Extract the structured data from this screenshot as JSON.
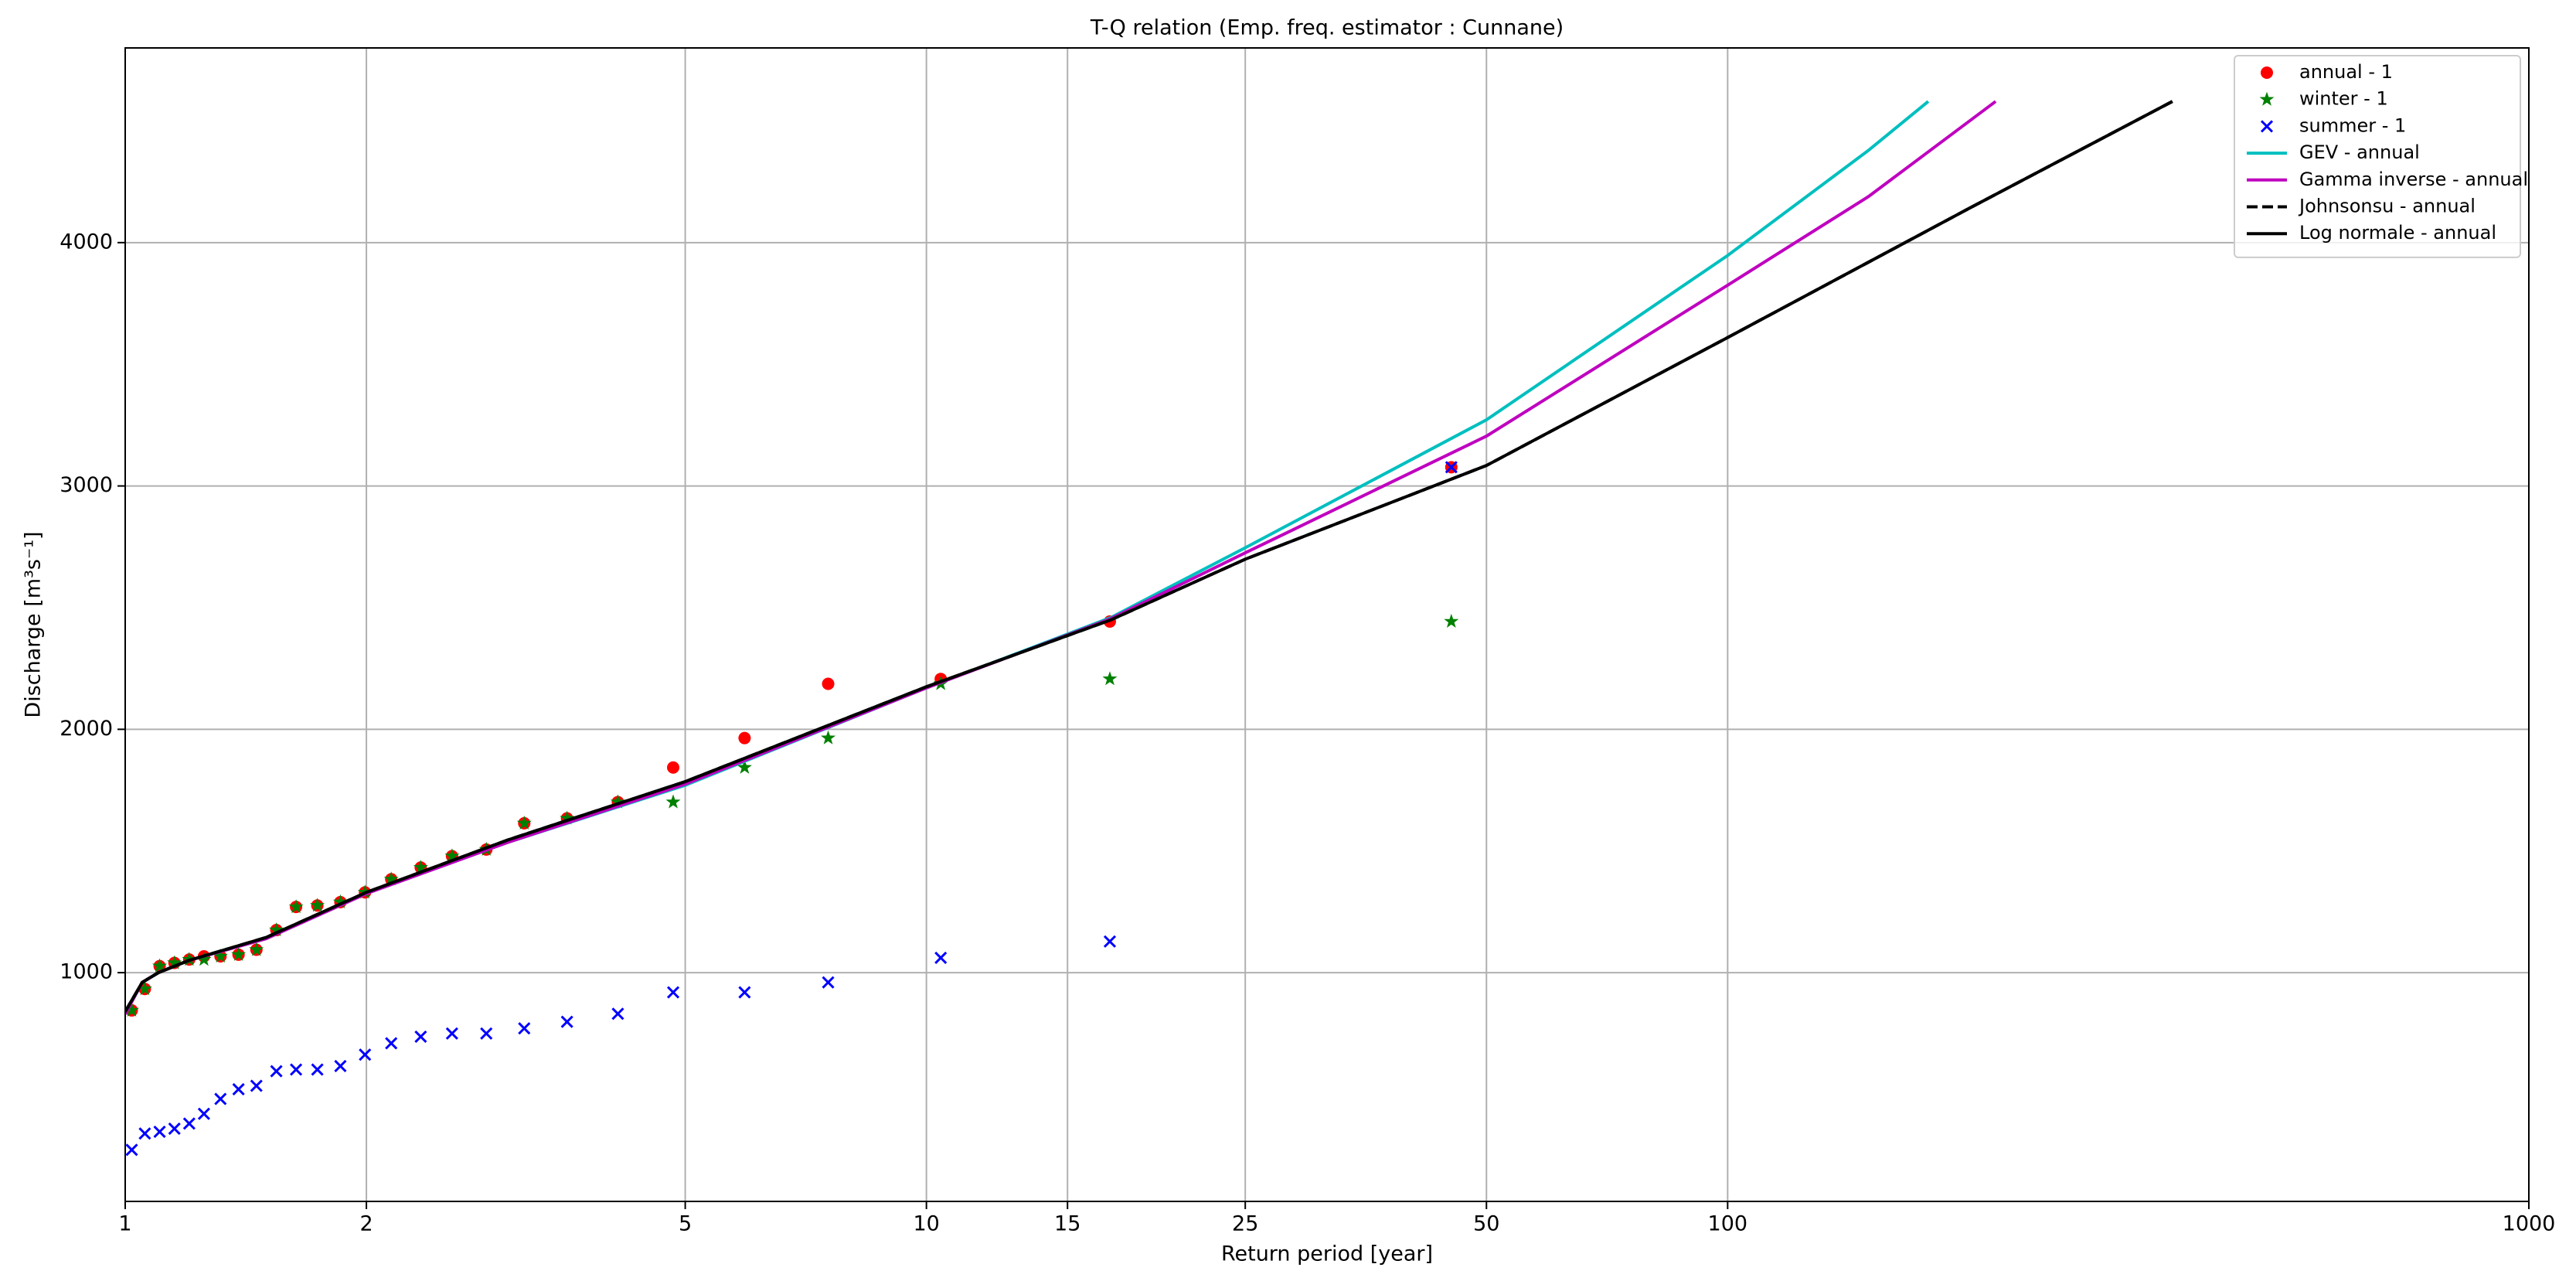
{
  "chart_data": {
    "type": "scatter",
    "title": "T-Q relation (Emp. freq. estimator : Cunnane)",
    "x_label": "Return period [year]",
    "y_label": "Discharge [m³s⁻¹]",
    "xscale": "log",
    "xlim": [
      1,
      1000
    ],
    "ylim": [
      60,
      4800
    ],
    "xticks": [
      1,
      2,
      5,
      10,
      15,
      25,
      50,
      100,
      1000
    ],
    "yticks": [
      1000,
      2000,
      3000,
      4000
    ],
    "grid": true,
    "legend": "upper right",
    "x": [
      1.019,
      1.058,
      1.104,
      1.152,
      1.202,
      1.254,
      1.315,
      1.385,
      1.458,
      1.544,
      1.634,
      1.737,
      1.856,
      1.992,
      2.148,
      2.338,
      2.558,
      2.823,
      3.148,
      3.56,
      4.12,
      4.83,
      5.93,
      7.54,
      10.42,
      16.94,
      45.2
    ],
    "series": [
      {
        "name": "annual - 1",
        "color": "#ff0000",
        "marker": "circle",
        "values": [
          845,
          933,
          1027,
          1040,
          1054,
          1067,
          1067,
          1074,
          1094,
          1175,
          1270,
          1276,
          1290,
          1330,
          1384,
          1432,
          1479,
          1506,
          1614,
          1634,
          1701,
          1843,
          1964,
          2187,
          2207,
          2443,
          3077
        ]
      },
      {
        "name": "winter - 1",
        "color": "#008000",
        "marker": "star",
        "values": [
          845,
          933,
          1027,
          1040,
          1054,
          1054,
          1067,
          1074,
          1094,
          1175,
          1270,
          1276,
          1290,
          1330,
          1384,
          1432,
          1479,
          1506,
          1614,
          1634,
          1701,
          1701,
          1843,
          1964,
          2187,
          2207,
          2443
        ]
      },
      {
        "name": "summer - 1",
        "color": "#0000ff",
        "marker": "cross",
        "values": [
          272,
          339,
          346,
          359,
          380,
          420,
          481,
          521,
          535,
          595,
          602,
          602,
          616,
          663,
          710,
          737,
          750,
          750,
          771,
          798,
          831,
          919,
          919,
          960,
          1061,
          1128,
          3077
        ]
      },
      {
        "name": "GEV - annual",
        "color": "#00bfbf",
        "line": "solid",
        "x": [
          1.0,
          1.05,
          1.1,
          1.2,
          1.5,
          2,
          3,
          5,
          10,
          17,
          25,
          50,
          100,
          150,
          178
        ],
        "values": [
          830,
          960,
          1000,
          1050,
          1140,
          1325,
          1535,
          1770,
          2170,
          2460,
          2746,
          3272,
          3947,
          4380,
          4580
        ]
      },
      {
        "name": "Gamma inverse - annual",
        "color": "#bf00bf",
        "line": "solid",
        "x": [
          1.0,
          1.05,
          1.1,
          1.2,
          1.5,
          2,
          3,
          5,
          10,
          17,
          25,
          50,
          100,
          150,
          216
        ],
        "values": [
          830,
          960,
          1000,
          1050,
          1140,
          1325,
          1535,
          1775,
          2170,
          2455,
          2725,
          3205,
          3825,
          4190,
          4580
        ]
      },
      {
        "name": "Johnsonsu - annual",
        "color": "#000000",
        "line": "dashed",
        "x": [
          1.0,
          1.05,
          1.1,
          1.2,
          1.5,
          2,
          3,
          5,
          10,
          17,
          25,
          50,
          100,
          200,
          359
        ],
        "values": [
          840,
          960,
          1000,
          1050,
          1145,
          1330,
          1545,
          1785,
          2175,
          2450,
          2699,
          3084,
          3610,
          4140,
          4580
        ]
      },
      {
        "name": "Log normale - annual",
        "color": "#000000",
        "line": "solid",
        "x": [
          1.0,
          1.05,
          1.1,
          1.2,
          1.5,
          2,
          3,
          5,
          10,
          17,
          25,
          50,
          100,
          200,
          359
        ],
        "values": [
          840,
          960,
          1000,
          1050,
          1145,
          1330,
          1545,
          1785,
          2175,
          2450,
          2699,
          3084,
          3610,
          4140,
          4580
        ]
      }
    ]
  }
}
